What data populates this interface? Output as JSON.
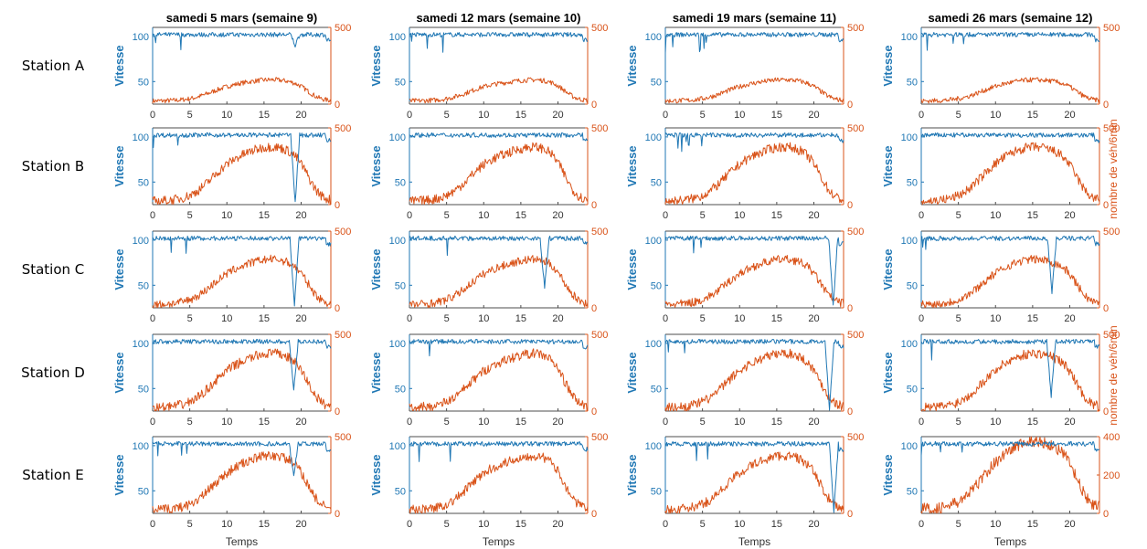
{
  "chart_data": {
    "type": "line",
    "columns": [
      "samedi 5 mars (semaine 9)",
      "samedi 12 mars (semaine 10)",
      "samedi 19 mars (semaine 11)",
      "samedi 26 mars (semaine 12)"
    ],
    "rows": [
      "Station A",
      "Station B",
      "Station C",
      "Station D",
      "Station E"
    ],
    "xlabel": "Temps",
    "ylabel_left": "Vitesse",
    "ylabel_right": "nombre de véh/6min",
    "x_range": [
      0,
      24
    ],
    "x_ticks": [
      0,
      5,
      10,
      15,
      20
    ],
    "y_left_range": [
      25,
      110
    ],
    "y_left_ticks": [
      50,
      100
    ],
    "y_right_range_default": [
      0,
      500
    ],
    "y_right_ticks_default": [
      0,
      500
    ],
    "y_right_range_E_col4": [
      0,
      400
    ],
    "y_right_ticks_E_col4": [
      0,
      200,
      400
    ],
    "grid": false,
    "colors": {
      "speed": "#1f77b4",
      "flow": "#d95319",
      "axis": "#4d4d4d"
    },
    "speed_baseline": 102,
    "speed_dips": [
      {
        "row": 0,
        "col": 0,
        "hour": 19.2,
        "depth": 12
      },
      {
        "row": 1,
        "col": 0,
        "hour": 19.2,
        "depth": 75
      },
      {
        "row": 2,
        "col": 0,
        "hour": 19.1,
        "depth": 75
      },
      {
        "row": 2,
        "col": 1,
        "hour": 18.2,
        "depth": 55
      },
      {
        "row": 2,
        "col": 2,
        "hour": 22.6,
        "depth": 75
      },
      {
        "row": 2,
        "col": 3,
        "hour": 17.6,
        "depth": 60
      },
      {
        "row": 3,
        "col": 0,
        "hour": 19.0,
        "depth": 55
      },
      {
        "row": 3,
        "col": 2,
        "hour": 22.1,
        "depth": 75
      },
      {
        "row": 3,
        "col": 3,
        "hour": 17.5,
        "depth": 60
      },
      {
        "row": 4,
        "col": 0,
        "hour": 19.0,
        "depth": 35
      },
      {
        "row": 4,
        "col": 2,
        "hour": 22.7,
        "depth": 75
      }
    ],
    "flow_peak_per_row": [
      140,
      360,
      300,
      360,
      360
    ],
    "flow_peak_hour_per_col": [
      16,
      17,
      16,
      15
    ]
  }
}
